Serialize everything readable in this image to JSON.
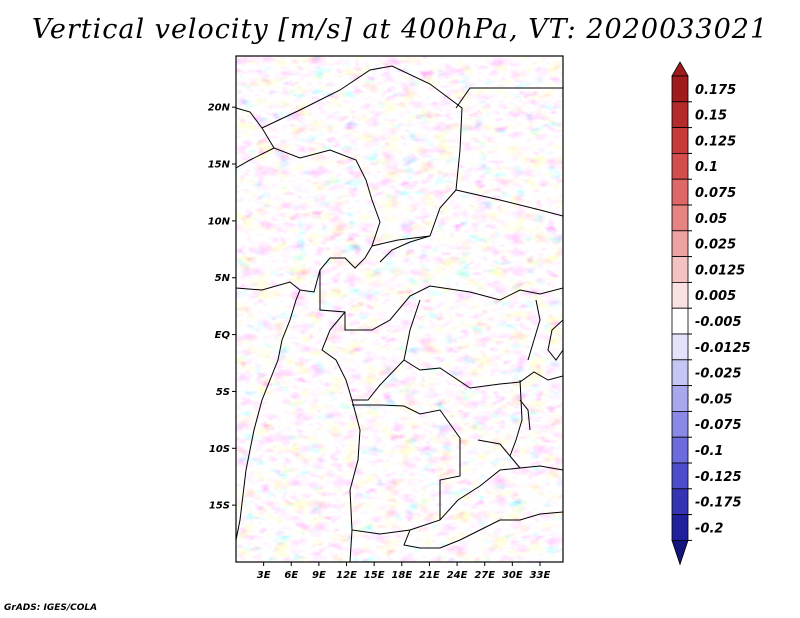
{
  "title": "Vertical velocity [m/s] at 400hPa, VT: 2020033021",
  "footer": "GrADS: IGES/COLA",
  "map": {
    "lon_range": [
      0,
      35.5
    ],
    "lat_range": [
      -20,
      24.5
    ],
    "lat_ticks": [
      {
        "value": 20,
        "label": "20N"
      },
      {
        "value": 15,
        "label": "15N"
      },
      {
        "value": 10,
        "label": "10N"
      },
      {
        "value": 5,
        "label": "5N"
      },
      {
        "value": 0,
        "label": "EQ"
      },
      {
        "value": -5,
        "label": "5S"
      },
      {
        "value": -10,
        "label": "10S"
      },
      {
        "value": -15,
        "label": "15S"
      }
    ],
    "lon_ticks": [
      {
        "value": 3,
        "label": "3E"
      },
      {
        "value": 6,
        "label": "6E"
      },
      {
        "value": 9,
        "label": "9E"
      },
      {
        "value": 12,
        "label": "12E"
      },
      {
        "value": 15,
        "label": "15E"
      },
      {
        "value": 18,
        "label": "18E"
      },
      {
        "value": 21,
        "label": "21E"
      },
      {
        "value": 24,
        "label": "24E"
      },
      {
        "value": 27,
        "label": "27E"
      },
      {
        "value": 30,
        "label": "30E"
      },
      {
        "value": 33,
        "label": "33E"
      }
    ]
  },
  "colorbar": {
    "labels": [
      "0.175",
      "0.15",
      "0.125",
      "0.1",
      "0.075",
      "0.05",
      "0.025",
      "0.0125",
      "0.005",
      "-0.005",
      "-0.0125",
      "-0.025",
      "-0.05",
      "-0.075",
      "-0.1",
      "-0.125",
      "-0.175",
      "-0.2"
    ],
    "colors": [
      "#a01c1c",
      "#b52a2a",
      "#c83a3a",
      "#d44e4e",
      "#de6868",
      "#e68484",
      "#eea2a2",
      "#f4c2c2",
      "#fae2e2",
      "#ffffff",
      "#e2e2fa",
      "#c6c6f4",
      "#a8a8ee",
      "#8a8ae6",
      "#6c6cdc",
      "#4c4ccc",
      "#3434b4",
      "#20209c",
      "#14147e"
    ]
  }
}
